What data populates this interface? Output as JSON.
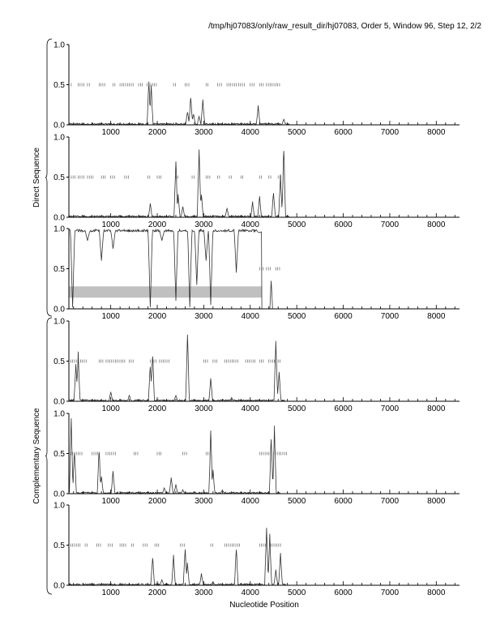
{
  "header": {
    "title": "/tmp/hj07083/only/raw_result_dir/hj07083, Order 5, Window 96, Step 12, 2/2"
  },
  "colors": {
    "axis": "#000000",
    "trace": "#333333",
    "orf_marks": "#666666",
    "highlight_bar": "#c0c0c0",
    "background": "#ffffff"
  },
  "chart_data": {
    "type": "line",
    "xlabel": "Nucleotide Position",
    "group_labels": [
      "Direct Sequence",
      "Complementary Sequence"
    ],
    "xlim": [
      100,
      8500
    ],
    "ylim": [
      0,
      1
    ],
    "x_ticks": [
      1000,
      2000,
      3000,
      4000,
      5000,
      6000,
      7000,
      8000
    ],
    "y_ticks": [
      "0.0",
      "0.5",
      "1.0"
    ],
    "panels": [
      {
        "group": "Direct Sequence",
        "frame": 1,
        "peaks": [
          [
            1820,
            0.57
          ],
          [
            1870,
            0.5
          ],
          [
            2650,
            0.18
          ],
          [
            2720,
            0.38
          ],
          [
            2780,
            0.15
          ],
          [
            2900,
            0.12
          ],
          [
            2980,
            0.35
          ],
          [
            4170,
            0.25
          ],
          [
            4720,
            0.08
          ]
        ],
        "orf_marks": [
          [
            150,
            180
          ],
          [
            300,
            420
          ],
          [
            500,
            540
          ],
          [
            750,
            880
          ],
          [
            1050,
            1100
          ],
          [
            1200,
            1500
          ],
          [
            1600,
            1700
          ],
          [
            1780,
            1880
          ],
          [
            1900,
            2000
          ],
          [
            2350,
            2420
          ],
          [
            2600,
            2680
          ],
          [
            3050,
            3100
          ],
          [
            3300,
            3400
          ],
          [
            3500,
            3700
          ],
          [
            3750,
            3900
          ],
          [
            4000,
            4100
          ],
          [
            4200,
            4300
          ],
          [
            4350,
            4650
          ]
        ],
        "highlight": null
      },
      {
        "group": "Direct Sequence",
        "frame": 2,
        "peaks": [
          [
            1850,
            0.18
          ],
          [
            2400,
            0.78
          ],
          [
            2450,
            0.3
          ],
          [
            2550,
            0.15
          ],
          [
            2900,
            0.95
          ],
          [
            2950,
            0.3
          ],
          [
            3500,
            0.12
          ],
          [
            4050,
            0.2
          ],
          [
            4200,
            0.28
          ],
          [
            4500,
            0.33
          ],
          [
            4650,
            0.55
          ],
          [
            4720,
            0.95
          ]
        ],
        "orf_marks": [
          [
            150,
            260
          ],
          [
            300,
            420
          ],
          [
            500,
            650
          ],
          [
            800,
            900
          ],
          [
            1000,
            1100
          ],
          [
            1300,
            1400
          ],
          [
            1800,
            1850
          ],
          [
            2000,
            2100
          ],
          [
            2400,
            2450
          ],
          [
            2750,
            2800
          ],
          [
            3050,
            3150
          ],
          [
            3300,
            3350
          ],
          [
            3550,
            3600
          ],
          [
            3800,
            3850
          ],
          [
            4200,
            4250
          ],
          [
            4400,
            4450
          ],
          [
            4600,
            4650
          ]
        ],
        "highlight": null
      },
      {
        "group": "Direct Sequence",
        "frame": 3,
        "peaks": [
          [
            180,
            0.02
          ],
          [
            500,
            0.85
          ],
          [
            800,
            0.6
          ],
          [
            1050,
            0.75
          ],
          [
            1850,
            0.02
          ],
          [
            2100,
            0.85
          ],
          [
            2400,
            0.1
          ],
          [
            2700,
            0.02
          ],
          [
            2850,
            0.3
          ],
          [
            3050,
            0.6
          ],
          [
            3150,
            0.05
          ],
          [
            3700,
            0.45
          ],
          [
            4200,
            0.95
          ],
          [
            4450,
            0.35
          ]
        ],
        "baseline_high": true,
        "orf_marks": [
          [
            4200,
            4300
          ],
          [
            4350,
            4450
          ],
          [
            4550,
            4650
          ]
        ],
        "highlight": [
          100,
          4250
        ]
      },
      {
        "group": "Complementary Sequence",
        "frame": 1,
        "peaks": [
          [
            250,
            0.52
          ],
          [
            300,
            0.62
          ],
          [
            1000,
            0.13
          ],
          [
            1400,
            0.08
          ],
          [
            1850,
            0.5
          ],
          [
            1900,
            0.65
          ],
          [
            2400,
            0.08
          ],
          [
            2650,
            0.87
          ],
          [
            3150,
            0.3
          ],
          [
            3600,
            0.05
          ],
          [
            4550,
            0.85
          ],
          [
            4620,
            0.4
          ]
        ],
        "orf_marks": [
          [
            100,
            280
          ],
          [
            350,
            500
          ],
          [
            750,
            850
          ],
          [
            900,
            1300
          ],
          [
            1400,
            1500
          ],
          [
            1850,
            2000
          ],
          [
            2050,
            2250
          ],
          [
            3000,
            3100
          ],
          [
            3200,
            3300
          ],
          [
            3450,
            3750
          ],
          [
            3900,
            4100
          ],
          [
            4200,
            4300
          ],
          [
            4400,
            4650
          ]
        ],
        "highlight": null
      },
      {
        "group": "Complementary Sequence",
        "frame": 2,
        "peaks": [
          [
            150,
            0.98
          ],
          [
            220,
            0.6
          ],
          [
            750,
            0.6
          ],
          [
            800,
            0.25
          ],
          [
            1050,
            0.3
          ],
          [
            1400,
            0.02
          ],
          [
            2150,
            0.08
          ],
          [
            2300,
            0.22
          ],
          [
            2400,
            0.12
          ],
          [
            2550,
            0.05
          ],
          [
            3150,
            0.8
          ],
          [
            3200,
            0.3
          ],
          [
            3400,
            0.05
          ],
          [
            4450,
            0.75
          ],
          [
            4520,
            0.85
          ]
        ],
        "orf_marks": [
          [
            100,
            400
          ],
          [
            600,
            750
          ],
          [
            900,
            1100
          ],
          [
            1500,
            1600
          ],
          [
            2000,
            2100
          ],
          [
            2550,
            2650
          ],
          [
            3050,
            3150
          ],
          [
            4200,
            4400
          ],
          [
            4500,
            4800
          ]
        ],
        "highlight": null
      },
      {
        "group": "Complementary Sequence",
        "frame": 3,
        "peaks": [
          [
            750,
            0.02
          ],
          [
            1900,
            0.38
          ],
          [
            2100,
            0.08
          ],
          [
            2350,
            0.38
          ],
          [
            2600,
            0.48
          ],
          [
            2650,
            0.3
          ],
          [
            2950,
            0.15
          ],
          [
            3200,
            0.05
          ],
          [
            3700,
            0.5
          ],
          [
            4350,
            0.75
          ],
          [
            4420,
            0.65
          ],
          [
            4550,
            0.2
          ],
          [
            4650,
            0.45
          ]
        ],
        "orf_marks": [
          [
            100,
            350
          ],
          [
            450,
            500
          ],
          [
            700,
            800
          ],
          [
            950,
            1050
          ],
          [
            1200,
            1350
          ],
          [
            1450,
            1500
          ],
          [
            1700,
            1800
          ],
          [
            1950,
            2050
          ],
          [
            2500,
            2600
          ],
          [
            3150,
            3200
          ],
          [
            3450,
            3800
          ],
          [
            4200,
            4350
          ],
          [
            4450,
            4650
          ]
        ],
        "highlight": null
      }
    ]
  }
}
